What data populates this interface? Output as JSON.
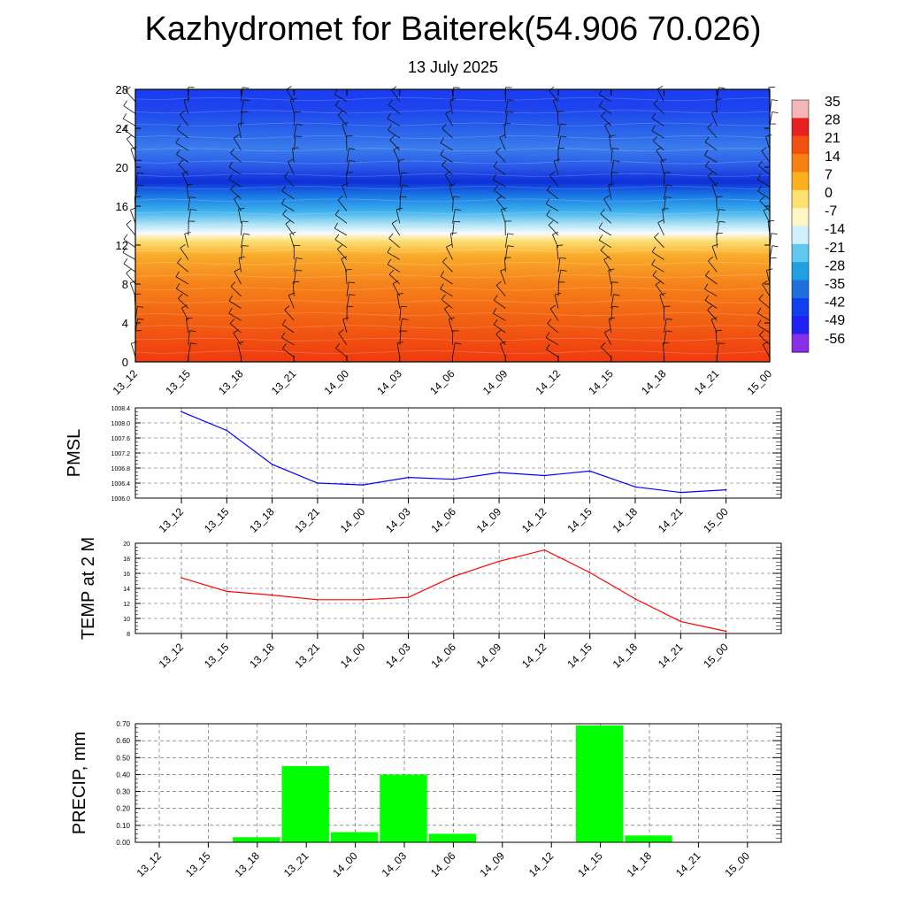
{
  "title": "Kazhydromet for Baiterek(54.906 70.026)",
  "subtitle": "13 July 2025",
  "chart_data": [
    {
      "type": "heatmap",
      "x_categories": [
        "13_12",
        "13_15",
        "13_18",
        "13_21",
        "14_00",
        "14_03",
        "14_06",
        "14_09",
        "14_12",
        "14_15",
        "14_18",
        "14_21",
        "15_00"
      ],
      "y_ticks": [
        0,
        4,
        8,
        12,
        16,
        20,
        24,
        28
      ],
      "ylim": [
        0,
        28
      ],
      "colorbar_labels": [
        35,
        28,
        21,
        14,
        7,
        0,
        -7,
        -14,
        -21,
        -28,
        -35,
        -42,
        -49,
        -56
      ],
      "colorbar_colors": [
        "#f4b6b6",
        "#e82020",
        "#f05010",
        "#f88010",
        "#fcb020",
        "#fde070",
        "#fff6c8",
        "#d0f0ff",
        "#60c8f0",
        "#20a0e0",
        "#2070e0",
        "#1040f0",
        "#2020f0",
        "#8830e8"
      ],
      "profile": [
        {
          "level": 0,
          "color": "#ee3a10"
        },
        {
          "level": 4,
          "color": "#f25e12"
        },
        {
          "level": 8,
          "color": "#f5821a"
        },
        {
          "level": 11,
          "color": "#f9ad2c"
        },
        {
          "level": 12.5,
          "color": "#fde27a"
        },
        {
          "level": 13.2,
          "color": "#f8fbff"
        },
        {
          "level": 14.2,
          "color": "#a8e0f6"
        },
        {
          "level": 15.5,
          "color": "#3cb0ec"
        },
        {
          "level": 17,
          "color": "#1c7ce6"
        },
        {
          "level": 18.5,
          "color": "#0d2fd8"
        },
        {
          "level": 20,
          "color": "#2a58e8"
        },
        {
          "level": 22,
          "color": "#3a7cec"
        },
        {
          "level": 24,
          "color": "#2860ea"
        },
        {
          "level": 26,
          "color": "#1e44ee"
        },
        {
          "level": 28,
          "color": "#1a3cf0"
        }
      ]
    },
    {
      "type": "line",
      "ylabel": "PMSL",
      "categories": [
        "13_12",
        "13_15",
        "13_18",
        "13_21",
        "14_00",
        "14_03",
        "14_06",
        "14_09",
        "14_12",
        "14_15",
        "14_18",
        "14_21",
        "15_00"
      ],
      "values": [
        1008.3,
        1007.8,
        1006.9,
        1006.4,
        1006.35,
        1006.55,
        1006.5,
        1006.68,
        1006.6,
        1006.72,
        1006.3,
        1006.15,
        1006.22
      ],
      "ylim": [
        1006.0,
        1008.4
      ],
      "yticks": [
        "1006.0",
        "1006.4",
        "1006.8",
        "1007.2",
        "1007.6",
        "1008.0",
        "1008.4"
      ],
      "color": "#0000ff",
      "grid": true
    },
    {
      "type": "line",
      "ylabel": "TEMP at 2 M",
      "categories": [
        "13_12",
        "13_15",
        "13_18",
        "13_21",
        "14_00",
        "14_03",
        "14_06",
        "14_09",
        "14_12",
        "14_15",
        "14_18",
        "14_21",
        "15_00"
      ],
      "values": [
        15.4,
        13.6,
        13.1,
        12.5,
        12.5,
        12.8,
        15.6,
        17.6,
        19.1,
        16.1,
        12.6,
        9.6,
        8.3
      ],
      "ylim": [
        8,
        20
      ],
      "yticks": [
        "8",
        "10",
        "12",
        "14",
        "16",
        "18",
        "20"
      ],
      "color": "#ff0000",
      "grid": true
    },
    {
      "type": "bar",
      "ylabel": "PRECIP, mm",
      "categories": [
        "13_12",
        "13_15",
        "13_18",
        "13_21",
        "14_00",
        "14_03",
        "14_06",
        "14_09",
        "14_12",
        "14_15",
        "14_18",
        "14_21",
        "15_00"
      ],
      "values": [
        0,
        0,
        0.03,
        0.45,
        0.06,
        0.4,
        0.05,
        0,
        0,
        0.69,
        0.04,
        0,
        0
      ],
      "ylim": [
        0,
        0.7
      ],
      "yticks": [
        "0.00",
        "0.10",
        "0.20",
        "0.30",
        "0.40",
        "0.50",
        "0.60",
        "0.70"
      ],
      "color": "#00ff00",
      "grid": true
    }
  ]
}
